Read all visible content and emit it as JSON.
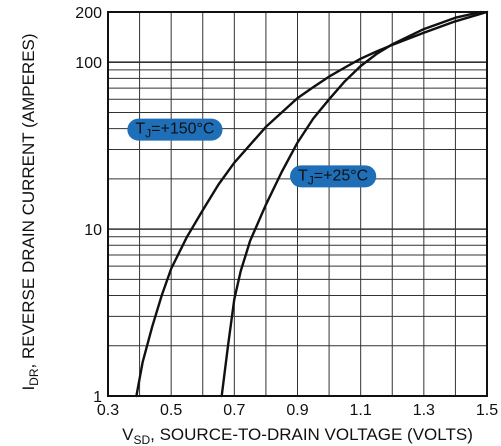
{
  "chart_data": {
    "type": "line",
    "x_scale": "linear",
    "y_scale": "log",
    "xlim": [
      0.3,
      1.5
    ],
    "ylim": [
      1,
      200
    ],
    "grid": true,
    "x_ticks": [
      {
        "value": 0.3,
        "label": "0.3"
      },
      {
        "value": 0.5,
        "label": "0.5"
      },
      {
        "value": 0.7,
        "label": "0.7"
      },
      {
        "value": 0.9,
        "label": "0.9"
      },
      {
        "value": 1.1,
        "label": "1.1"
      },
      {
        "value": 1.3,
        "label": "1.3"
      },
      {
        "value": 1.5,
        "label": "1.5"
      }
    ],
    "y_ticks": [
      {
        "value": 1,
        "label": "1"
      },
      {
        "value": 10,
        "label": "10"
      },
      {
        "value": 100,
        "label": "100"
      },
      {
        "value": 200,
        "label": "200"
      }
    ],
    "xlabel": {
      "main": "V",
      "sub": "SD",
      "rest": ", SOURCE-TO-DRAIN VOLTAGE (VOLTS)"
    },
    "ylabel": {
      "main": "I",
      "sub": "DR",
      "rest": ", REVERSE DRAIN CURRENT (AMPERES)"
    },
    "series": [
      {
        "label_main": "T",
        "label_sub": "J",
        "label_rest": "=+150°C",
        "label_x": 0.355,
        "label_y": 40,
        "points": [
          [
            0.39,
            1.0
          ],
          [
            0.41,
            1.6
          ],
          [
            0.44,
            2.6
          ],
          [
            0.47,
            4.0
          ],
          [
            0.5,
            5.8
          ],
          [
            0.55,
            9.0
          ],
          [
            0.6,
            13.0
          ],
          [
            0.65,
            18.5
          ],
          [
            0.7,
            25.0
          ],
          [
            0.75,
            32.0
          ],
          [
            0.8,
            41.0
          ],
          [
            0.85,
            50.0
          ],
          [
            0.9,
            61.0
          ],
          [
            0.95,
            71.0
          ],
          [
            1.0,
            82.0
          ],
          [
            1.05,
            93.0
          ],
          [
            1.1,
            105.0
          ],
          [
            1.15,
            116.0
          ],
          [
            1.2,
            127.0
          ],
          [
            1.3,
            150.0
          ],
          [
            1.4,
            176.0
          ],
          [
            1.5,
            200.0
          ]
        ]
      },
      {
        "label_main": "T",
        "label_sub": "J",
        "label_rest": "=+25°C",
        "label_x": 0.87,
        "label_y": 21,
        "points": [
          [
            0.66,
            1.0
          ],
          [
            0.68,
            2.0
          ],
          [
            0.7,
            3.8
          ],
          [
            0.72,
            5.6
          ],
          [
            0.75,
            8.5
          ],
          [
            0.8,
            14.0
          ],
          [
            0.85,
            22.0
          ],
          [
            0.9,
            33.0
          ],
          [
            0.95,
            46.0
          ],
          [
            1.0,
            60.0
          ],
          [
            1.05,
            77.0
          ],
          [
            1.1,
            95.0
          ],
          [
            1.15,
            112.0
          ],
          [
            1.2,
            128.0
          ],
          [
            1.3,
            158.0
          ],
          [
            1.4,
            185.0
          ],
          [
            1.48,
            200.0
          ]
        ]
      }
    ]
  }
}
